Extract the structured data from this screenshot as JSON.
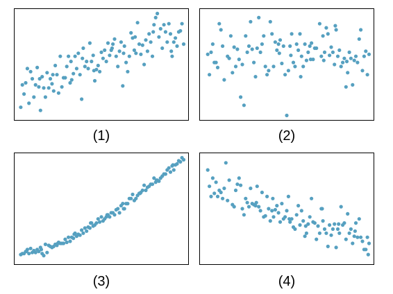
{
  "point_color": "#56a0c0",
  "chart_data": [
    {
      "type": "scatter",
      "label": "(1)",
      "xlim": [
        0,
        100
      ],
      "ylim": [
        0,
        100
      ],
      "axes_visible": false,
      "x": [
        1,
        3,
        4,
        6,
        7,
        8,
        9,
        10,
        11,
        12,
        13,
        14,
        15,
        16,
        17,
        18,
        19,
        20,
        21,
        22,
        23,
        24,
        25,
        26,
        27,
        28,
        29,
        30,
        31,
        32,
        33,
        34,
        35,
        36,
        37,
        38,
        39,
        40,
        41,
        42,
        43,
        44,
        45,
        46,
        47,
        48,
        49,
        50,
        51,
        52,
        53,
        54,
        55,
        56,
        57,
        58,
        59,
        60,
        61,
        62,
        63,
        64,
        65,
        66,
        67,
        68,
        69,
        70,
        71,
        72,
        73,
        74,
        75,
        76,
        77,
        78,
        79,
        80,
        81,
        82,
        83,
        84,
        85,
        86,
        87,
        88,
        89,
        90,
        91,
        92,
        93,
        94,
        95,
        96,
        97,
        98,
        99,
        100,
        2,
        5,
        12.5,
        20.5,
        31.5,
        38.5,
        45.5,
        56.5,
        63.5,
        70.5,
        81.5,
        92.5
      ],
      "y": [
        8,
        21,
        32,
        12,
        43,
        36,
        18,
        30,
        47,
        28,
        5,
        38,
        27,
        18,
        42,
        27,
        36,
        31,
        24,
        49,
        40,
        22,
        58,
        28,
        37,
        37,
        48,
        58,
        32,
        35,
        41,
        58,
        46,
        61,
        40,
        16,
        66,
        48,
        53,
        46,
        71,
        53,
        59,
        34,
        45,
        49,
        43,
        62,
        56,
        64,
        53,
        71,
        59,
        64,
        70,
        75,
        58,
        48,
        63,
        72,
        29,
        68,
        52,
        43,
        58,
        81,
        76,
        64,
        61,
        91,
        70,
        60,
        69,
        50,
        74,
        63,
        80,
        72,
        58,
        89,
        96,
        100,
        77,
        85,
        66,
        89,
        82,
        72,
        90,
        80,
        58,
        72,
        76,
        68,
        82,
        83,
        90,
        70,
        30,
        46,
        36,
        40,
        53,
        56,
        44,
        66,
        61,
        77,
        82,
        63
      ]
    },
    {
      "type": "scatter",
      "label": "(2)",
      "xlim": [
        0,
        100
      ],
      "ylim": [
        0,
        100
      ],
      "axes_visible": false,
      "x": [
        2,
        3,
        4,
        5,
        6,
        8,
        9,
        10,
        11,
        12,
        14,
        16,
        17,
        18,
        19,
        20,
        21,
        22,
        24,
        25,
        26,
        27,
        28,
        30,
        31,
        32,
        33,
        34,
        35,
        36,
        37,
        38,
        40,
        41,
        42,
        43,
        44,
        45,
        46,
        47,
        48,
        49,
        50,
        51,
        52,
        53,
        54,
        55,
        56,
        57,
        58,
        59,
        60,
        61,
        62,
        63,
        64,
        65,
        66,
        67,
        68,
        70,
        71,
        72,
        73,
        74,
        75,
        76,
        77,
        78,
        79,
        80,
        81,
        82,
        83,
        84,
        85,
        86,
        87,
        88,
        89,
        90,
        91,
        92,
        93,
        94,
        95,
        96,
        97,
        98,
        99,
        100,
        7,
        15,
        23,
        29,
        39,
        45.5,
        52.5,
        58.5,
        64.5,
        72.5,
        79.5,
        86.5
      ],
      "y": [
        60,
        40,
        62,
        70,
        52,
        47,
        90,
        84,
        68,
        35,
        58,
        78,
        42,
        67,
        48,
        65,
        55,
        18,
        10,
        78,
        62,
        68,
        92,
        52,
        38,
        66,
        96,
        62,
        70,
        78,
        48,
        40,
        92,
        80,
        48,
        72,
        64,
        70,
        74,
        51,
        68,
        40,
        0,
        44,
        68,
        80,
        52,
        48,
        70,
        64,
        80,
        58,
        48,
        70,
        54,
        62,
        68,
        71,
        55,
        66,
        66,
        90,
        58,
        78,
        62,
        86,
        80,
        59,
        67,
        62,
        50,
        84,
        58,
        64,
        48,
        52,
        56,
        28,
        42,
        62,
        56,
        30,
        54,
        58,
        52,
        75,
        84,
        44,
        58,
        63,
        40,
        60,
        52,
        56,
        50,
        65,
        44,
        61,
        59,
        38,
        55,
        54,
        88,
        53
      ]
    },
    {
      "type": "scatter",
      "label": "(3)",
      "xlim": [
        0,
        100
      ],
      "ylim": [
        0,
        100
      ],
      "axes_visible": false,
      "x": [
        1,
        2,
        3,
        4,
        5,
        6,
        7,
        8,
        9,
        10,
        11,
        12,
        13,
        14,
        15,
        16,
        17,
        18,
        19,
        20,
        21,
        22,
        23,
        24,
        25,
        26,
        27,
        28,
        29,
        30,
        31,
        32,
        33,
        34,
        35,
        36,
        37,
        38,
        39,
        40,
        41,
        42,
        43,
        44,
        45,
        46,
        47,
        48,
        49,
        50,
        51,
        52,
        53,
        54,
        55,
        56,
        57,
        58,
        59,
        60,
        61,
        62,
        63,
        64,
        65,
        66,
        67,
        68,
        69,
        70,
        71,
        72,
        73,
        74,
        75,
        76,
        77,
        78,
        79,
        80,
        81,
        82,
        83,
        84,
        85,
        86,
        87,
        88,
        89,
        90,
        91,
        92,
        93,
        94,
        95,
        96,
        97,
        98,
        99,
        100,
        4.5,
        13.5,
        23.5,
        33.5,
        43.5,
        53.5,
        63.5,
        73.5,
        83.5,
        93.5
      ],
      "y": [
        5,
        6,
        6,
        8,
        10,
        6,
        11,
        7,
        9,
        7,
        10,
        8,
        12,
        6,
        4,
        15,
        7,
        14,
        13,
        12,
        13,
        15,
        14,
        17,
        16,
        16,
        16,
        20,
        17,
        22,
        18,
        22,
        21,
        26,
        23,
        25,
        24,
        29,
        26,
        31,
        28,
        32,
        31,
        36,
        33,
        34,
        36,
        40,
        37,
        42,
        38,
        40,
        42,
        44,
        42,
        46,
        46,
        44,
        49,
        50,
        46,
        53,
        55,
        50,
        55,
        55,
        60,
        60,
        64,
        58,
        60,
        63,
        65,
        66,
        68,
        73,
        68,
        71,
        72,
        74,
        74,
        80,
        76,
        78,
        77,
        80,
        82,
        84,
        84,
        88,
        90,
        86,
        92,
        88,
        93,
        94,
        97,
        96,
        100,
        98,
        8,
        10,
        16,
        25,
        36,
        44,
        50,
        65,
        78,
        93
      ]
    },
    {
      "type": "scatter",
      "label": "(4)",
      "xlim": [
        0,
        100
      ],
      "ylim": [
        0,
        100
      ],
      "axes_visible": false,
      "x": [
        2,
        3,
        4,
        5,
        6,
        7,
        8,
        9,
        10,
        12,
        13,
        14,
        15,
        17,
        18,
        19,
        20,
        22,
        23,
        24,
        25,
        26,
        27,
        28,
        29,
        30,
        31,
        32,
        33,
        34,
        35,
        36,
        37,
        38,
        39,
        40,
        41,
        42,
        43,
        44,
        45,
        46,
        47,
        48,
        49,
        50,
        51,
        52,
        53,
        54,
        55,
        56,
        57,
        58,
        59,
        60,
        61,
        62,
        63,
        64,
        65,
        66,
        67,
        68,
        69,
        70,
        71,
        72,
        73,
        74,
        75,
        76,
        77,
        78,
        79,
        80,
        81,
        82,
        83,
        84,
        85,
        86,
        87,
        88,
        89,
        90,
        91,
        92,
        93,
        94,
        95,
        96,
        97,
        98,
        99,
        100,
        11,
        21,
        31.5,
        41.5,
        51.5,
        61.5,
        71.5,
        81.5,
        91.5,
        99.5
      ],
      "y": [
        88,
        72,
        62,
        80,
        65,
        76,
        62,
        68,
        66,
        70,
        95,
        58,
        78,
        54,
        52,
        68,
        74,
        73,
        50,
        44,
        60,
        56,
        52,
        70,
        55,
        54,
        53,
        72,
        52,
        48,
        66,
        42,
        43,
        62,
        50,
        38,
        48,
        42,
        49,
        53,
        46,
        37,
        55,
        40,
        42,
        48,
        62,
        37,
        40,
        32,
        30,
        44,
        53,
        34,
        48,
        38,
        23,
        26,
        35,
        42,
        60,
        37,
        36,
        20,
        33,
        26,
        50,
        38,
        30,
        26,
        13,
        34,
        24,
        30,
        35,
        12,
        30,
        26,
        52,
        34,
        36,
        20,
        45,
        26,
        30,
        16,
        23,
        36,
        22,
        40,
        22,
        18,
        10,
        10,
        22,
        16,
        60,
        80,
        56,
        60,
        40,
        33,
        50,
        35,
        28,
        5
      ]
    }
  ]
}
